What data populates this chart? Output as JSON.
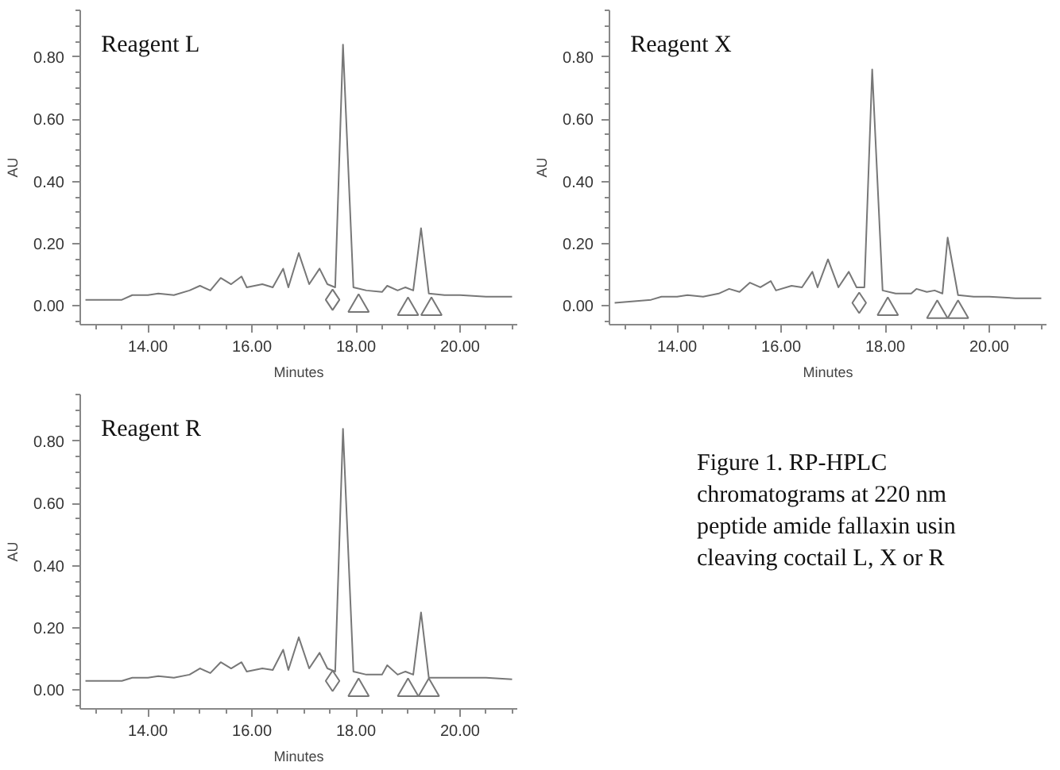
{
  "chart_data": [
    {
      "type": "line",
      "title": "Reagent L",
      "xlabel": "Minutes",
      "ylabel": "AU",
      "xlim": [
        12.7,
        21.1
      ],
      "ylim": [
        -0.06,
        0.95
      ],
      "xticks": [
        {
          "value": 14,
          "label": "14.00"
        },
        {
          "value": 16,
          "label": "16.00"
        },
        {
          "value": 18,
          "label": "18.00"
        },
        {
          "value": 20,
          "label": "20.00"
        }
      ],
      "yticks": [
        {
          "value": 0,
          "label": "0.00"
        },
        {
          "value": 0.2,
          "label": "0.20"
        },
        {
          "value": 0.4,
          "label": "0.40"
        },
        {
          "value": 0.6,
          "label": "0.60"
        },
        {
          "value": 0.8,
          "label": "0.80"
        }
      ],
      "grid": false,
      "line_style": "solid",
      "series": [
        {
          "color": "#777777",
          "x": [
            12.8,
            13.5,
            13.7,
            14.0,
            14.2,
            14.5,
            14.8,
            15.0,
            15.2,
            15.4,
            15.6,
            15.8,
            15.9,
            16.2,
            16.4,
            16.6,
            16.7,
            16.9,
            17.1,
            17.3,
            17.45,
            17.6,
            17.75,
            17.95,
            18.2,
            18.5,
            18.6,
            18.8,
            18.95,
            19.1,
            19.25,
            19.4,
            19.7,
            20.0,
            20.5,
            21.0
          ],
          "values": [
            0.02,
            0.02,
            0.035,
            0.035,
            0.04,
            0.035,
            0.05,
            0.065,
            0.05,
            0.09,
            0.07,
            0.095,
            0.06,
            0.07,
            0.06,
            0.12,
            0.06,
            0.17,
            0.07,
            0.12,
            0.07,
            0.06,
            0.84,
            0.06,
            0.05,
            0.045,
            0.065,
            0.05,
            0.06,
            0.05,
            0.25,
            0.04,
            0.035,
            0.035,
            0.03,
            0.03
          ]
        },
        {
          "type": "scatter",
          "marker": "diamond",
          "color": "#777777",
          "x": [
            17.55
          ],
          "values": [
            0.02
          ]
        },
        {
          "type": "scatter",
          "marker": "triangle",
          "color": "#777777",
          "x": [
            18.05,
            19.0,
            19.45
          ],
          "values": [
            0.0,
            -0.01,
            -0.01
          ]
        }
      ]
    },
    {
      "type": "line",
      "title": "Reagent X",
      "xlabel": "Minutes",
      "ylabel": "AU",
      "xlim": [
        12.7,
        21.1
      ],
      "ylim": [
        -0.06,
        0.95
      ],
      "xticks": [
        {
          "value": 14,
          "label": "14.00"
        },
        {
          "value": 16,
          "label": "16.00"
        },
        {
          "value": 18,
          "label": "18.00"
        },
        {
          "value": 20,
          "label": "20.00"
        }
      ],
      "yticks": [
        {
          "value": 0,
          "label": "0.00"
        },
        {
          "value": 0.2,
          "label": "0.20"
        },
        {
          "value": 0.4,
          "label": "0.40"
        },
        {
          "value": 0.6,
          "label": "0.60"
        },
        {
          "value": 0.8,
          "label": "0.80"
        }
      ],
      "grid": false,
      "line_style": "solid",
      "series": [
        {
          "color": "#777777",
          "x": [
            12.8,
            13.5,
            13.7,
            14.0,
            14.2,
            14.5,
            14.8,
            15.0,
            15.2,
            15.4,
            15.6,
            15.8,
            15.9,
            16.2,
            16.4,
            16.6,
            16.7,
            16.9,
            17.1,
            17.3,
            17.45,
            17.6,
            17.75,
            17.95,
            18.2,
            18.5,
            18.6,
            18.8,
            18.95,
            19.1,
            19.2,
            19.4,
            19.7,
            20.0,
            20.5,
            21.0
          ],
          "values": [
            0.01,
            0.02,
            0.03,
            0.03,
            0.035,
            0.03,
            0.04,
            0.055,
            0.045,
            0.075,
            0.06,
            0.08,
            0.05,
            0.065,
            0.06,
            0.11,
            0.06,
            0.15,
            0.06,
            0.11,
            0.06,
            0.06,
            0.76,
            0.05,
            0.04,
            0.04,
            0.055,
            0.045,
            0.05,
            0.04,
            0.22,
            0.035,
            0.03,
            0.03,
            0.025,
            0.025
          ]
        },
        {
          "type": "scatter",
          "marker": "diamond",
          "color": "#777777",
          "x": [
            17.5
          ],
          "values": [
            0.01
          ]
        },
        {
          "type": "scatter",
          "marker": "triangle",
          "color": "#777777",
          "x": [
            18.05,
            19.0,
            19.4
          ],
          "values": [
            -0.01,
            -0.02,
            -0.02
          ]
        }
      ]
    },
    {
      "type": "line",
      "title": "Reagent R",
      "xlabel": "Minutes",
      "ylabel": "AU",
      "xlim": [
        12.7,
        21.1
      ],
      "ylim": [
        -0.06,
        0.95
      ],
      "xticks": [
        {
          "value": 14,
          "label": "14.00"
        },
        {
          "value": 16,
          "label": "16.00"
        },
        {
          "value": 18,
          "label": "18.00"
        },
        {
          "value": 20,
          "label": "20.00"
        }
      ],
      "yticks": [
        {
          "value": 0,
          "label": "0.00"
        },
        {
          "value": 0.2,
          "label": "0.20"
        },
        {
          "value": 0.4,
          "label": "0.40"
        },
        {
          "value": 0.6,
          "label": "0.60"
        },
        {
          "value": 0.8,
          "label": "0.80"
        }
      ],
      "grid": false,
      "line_style": "solid",
      "series": [
        {
          "color": "#777777",
          "x": [
            12.8,
            13.5,
            13.7,
            14.0,
            14.2,
            14.5,
            14.8,
            15.0,
            15.2,
            15.4,
            15.6,
            15.8,
            15.9,
            16.2,
            16.4,
            16.6,
            16.7,
            16.9,
            17.1,
            17.3,
            17.45,
            17.6,
            17.75,
            17.95,
            18.2,
            18.5,
            18.6,
            18.8,
            18.95,
            19.1,
            19.25,
            19.4,
            19.7,
            20.0,
            20.5,
            21.0
          ],
          "values": [
            0.03,
            0.03,
            0.04,
            0.04,
            0.045,
            0.04,
            0.05,
            0.07,
            0.055,
            0.09,
            0.07,
            0.09,
            0.06,
            0.07,
            0.065,
            0.13,
            0.065,
            0.17,
            0.07,
            0.12,
            0.07,
            0.06,
            0.84,
            0.06,
            0.05,
            0.05,
            0.08,
            0.05,
            0.06,
            0.05,
            0.25,
            0.04,
            0.04,
            0.04,
            0.04,
            0.035
          ]
        },
        {
          "type": "scatter",
          "marker": "diamond",
          "color": "#777777",
          "x": [
            17.55
          ],
          "values": [
            0.03
          ]
        },
        {
          "type": "scatter",
          "marker": "triangle",
          "color": "#777777",
          "x": [
            18.05,
            19.0,
            19.4
          ],
          "values": [
            0.0,
            0.0,
            0.0
          ]
        }
      ]
    },
    {
      "type": "other",
      "annotations": [
        "Figure 1. RP-HPLC\nchromatograms at 220 nm\npeptide amide fallaxin usin\ncleaving coctail L, X or R"
      ]
    }
  ]
}
